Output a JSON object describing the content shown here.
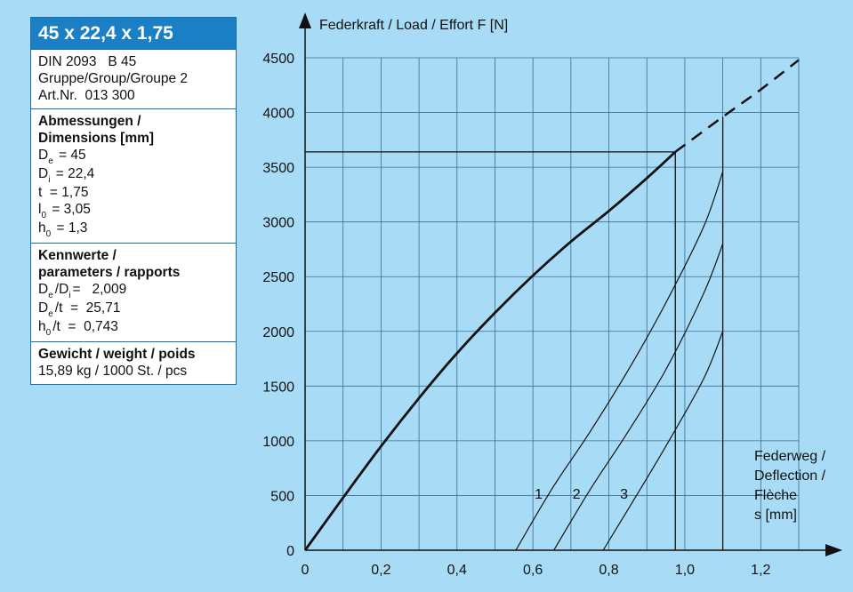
{
  "panel": {
    "title": "45 x 22,4 x 1,75",
    "info": [
      "DIN 2093   B 45",
      "Gruppe/Group/Groupe 2",
      "Art.Nr.  013 300"
    ],
    "dimensions_head": [
      "Abmessungen /",
      "Dimensions [mm]"
    ],
    "dimensions": [
      {
        "sym": "D",
        "sub": "e",
        "val": " = 45"
      },
      {
        "sym": "D",
        "sub": "i",
        "val": " = 22,4"
      },
      {
        "sym": "t",
        "sub": "",
        "val": "  = 1,75"
      },
      {
        "sym": "l",
        "sub": "0",
        "val": " = 3,05"
      },
      {
        "sym": "h",
        "sub": "0",
        "val": " = 1,3"
      }
    ],
    "params_head": [
      "Kennwerte /",
      "parameters / rapports"
    ],
    "params": [
      {
        "a": "D",
        "asub": "e",
        "b": "/D",
        "bsub": "i",
        "val": "=   2,009"
      },
      {
        "a": "D",
        "asub": "e",
        "b": "/t",
        "bsub": "",
        "val": "  =  25,71"
      },
      {
        "a": "h",
        "asub": "0",
        "b": "/t",
        "bsub": "",
        "val": "  =  0,743"
      }
    ],
    "weight_head": "Gewicht / weight / poids",
    "weight": "15,89 kg / 1000 St. / pcs"
  },
  "chart_data": {
    "type": "line",
    "ylabel": "Federkraft / Load / Effort   F [N]",
    "xlabel": [
      "Federweg /",
      "Deflection /",
      "Flèche",
      "s [mm]"
    ],
    "xlim": [
      0,
      1.3
    ],
    "ylim": [
      0,
      4500
    ],
    "x_ticks": [
      0,
      0.2,
      0.4,
      0.6,
      0.8,
      1.0,
      1.2
    ],
    "x_tick_labels": [
      "0",
      "0,2",
      "0,4",
      "0,6",
      "0,8",
      "1,0",
      "1,2"
    ],
    "y_ticks": [
      0,
      500,
      1000,
      1500,
      2000,
      2500,
      3000,
      3500,
      4000,
      4500
    ],
    "y_tick_labels": [
      "0",
      "500",
      "1000",
      "1500",
      "2000",
      "2500",
      "3000",
      "3500",
      "4000",
      "4500"
    ],
    "grid": true,
    "main_curve": {
      "x": [
        0,
        0.1,
        0.2,
        0.3,
        0.4,
        0.5,
        0.6,
        0.7,
        0.8,
        0.9,
        0.975
      ],
      "y": [
        0,
        480,
        950,
        1390,
        1800,
        2170,
        2510,
        2820,
        3100,
        3400,
        3640
      ]
    },
    "extension_curve": {
      "x": [
        0.975,
        1.1,
        1.2,
        1.3
      ],
      "y": [
        3640,
        3960,
        4210,
        4480
      ]
    },
    "reference_lines": {
      "y_level": 3640,
      "x_end": 0.975,
      "x_max_deflection": 1.1
    },
    "series": [
      {
        "name": "1",
        "x": [
          0.555,
          0.65,
          0.75,
          0.85,
          0.95,
          1.05,
          1.1
        ],
        "y": [
          0,
          560,
          1080,
          1640,
          2260,
          2960,
          3460
        ],
        "label_pos": [
          0.615,
          520
        ]
      },
      {
        "name": "2",
        "x": [
          0.655,
          0.75,
          0.85,
          0.95,
          1.05,
          1.1
        ],
        "y": [
          0,
          550,
          1080,
          1650,
          2350,
          2800
        ],
        "label_pos": [
          0.715,
          520
        ]
      },
      {
        "name": "3",
        "x": [
          0.785,
          0.85,
          0.95,
          1.05,
          1.1
        ],
        "y": [
          0,
          370,
          950,
          1570,
          2000
        ],
        "label_pos": [
          0.84,
          520
        ]
      }
    ]
  }
}
